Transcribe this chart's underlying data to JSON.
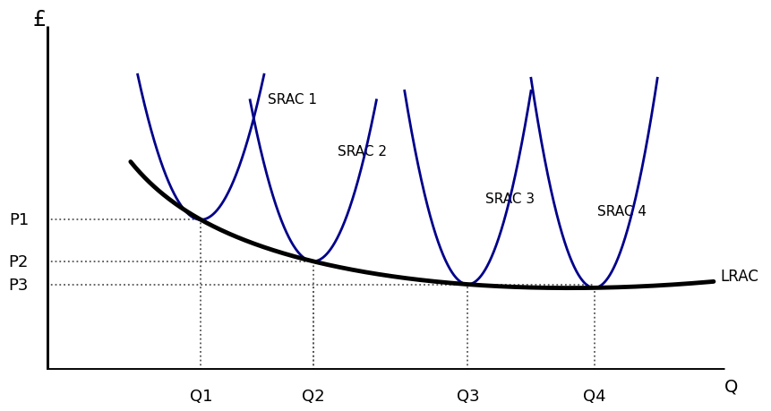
{
  "background_color": "#ffffff",
  "lrac_color": "#000000",
  "srac_color": "#00008B",
  "dotted_color": "#555555",
  "lrac_lw": 3.5,
  "srac_lw": 2.0,
  "axis_lw": 3.5,
  "p_labels": [
    "P1",
    "P2",
    "P3"
  ],
  "q_labels": [
    "Q1",
    "Q2",
    "Q3",
    "Q4"
  ],
  "srac_labels": [
    "SRAC 1",
    "SRAC 2",
    "SRAC 3",
    "SRAC 4"
  ],
  "lrac_label": "LRAC",
  "ylabel": "£",
  "xlabel": "Q",
  "xlim": [
    0,
    10
  ],
  "ylim": [
    0,
    9
  ]
}
